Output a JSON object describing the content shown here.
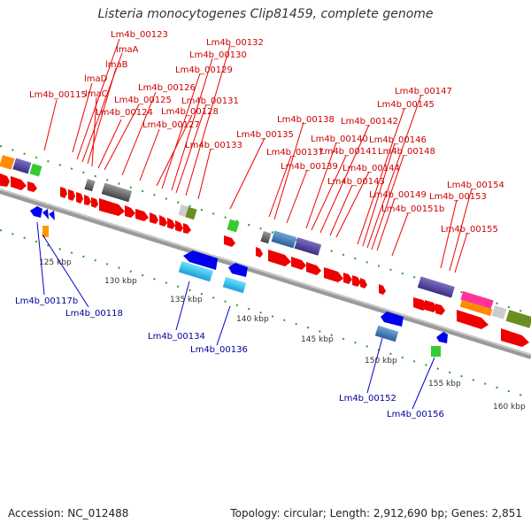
{
  "title": "Listeria monocytogenes Clip81459, complete genome",
  "footer": {
    "accession": "Accession: NC_012488",
    "topology": "Topology: circular; Length: 2,912,690 bp; Genes: 2,851"
  },
  "colors": {
    "forward_gene": "#ff0000",
    "reverse_gene": "#0000ff",
    "forward_label": "#cc0000",
    "reverse_label": "#000099",
    "backbone": "#999999",
    "tick": "#008800"
  },
  "scale_labels": [
    "125 kbp",
    "130 kbp",
    "135 kbp",
    "140 kbp",
    "145 kbp",
    "150 kbp",
    "155 kbp",
    "160 kbp"
  ],
  "upper_gene_labels": [
    "Lm4b_00123",
    "lmaA",
    "lmaB",
    "lmaD",
    "lmaC",
    "Lm4b_00115",
    "Lm4b_00124",
    "Lm4b_00125",
    "Lm4b_00126",
    "Lm4b_00127",
    "Lm4b_00128",
    "Lm4b_00129",
    "Lm4b_00130",
    "Lm4b_00131",
    "Lm4b_00132",
    "Lm4b_00133",
    "Lm4b_00135",
    "Lm4b_00137",
    "Lm4b_00138",
    "Lm4b_00139",
    "Lm4b_00140",
    "Lm4b_00141",
    "Lm4b_00142",
    "Lm4b_00143",
    "Lm4b_00144",
    "Lm4b_00145",
    "Lm4b_00146",
    "Lm4b_00147",
    "Lm4b_00148",
    "Lm4b_00149",
    "Lm4b_00151b",
    "Lm4b_00153",
    "Lm4b_00154",
    "Lm4b_00155"
  ],
  "lower_gene_labels": [
    "Lm4b_00117b",
    "Lm4b_00118",
    "Lm4b_00134",
    "Lm4b_00136",
    "Lm4b_00152",
    "Lm4b_00156"
  ]
}
